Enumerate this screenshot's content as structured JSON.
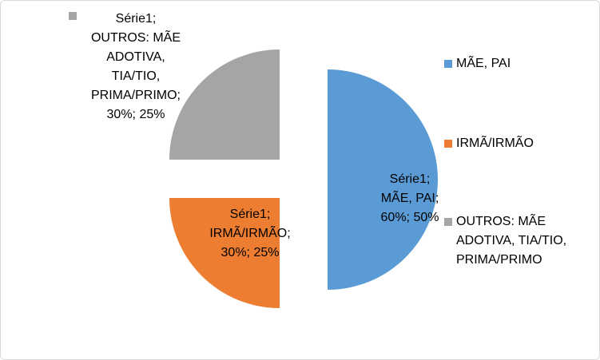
{
  "chart_data": {
    "type": "pie",
    "series_name": "Série1",
    "categories": [
      "MÃE, PAI",
      "IRMÃ/IRMÃO",
      "OUTROS: MÃE ADOTIVA, TIA/TIO, PRIMA/PRIMO"
    ],
    "values": [
      60,
      30,
      30
    ],
    "percentages": [
      50,
      25,
      25
    ],
    "colors": [
      "#5b9bd5",
      "#ed7d31",
      "#a5a5a5"
    ],
    "data_labels": [
      [
        "Série1;",
        "MÃE, PAI;",
        "60%; 50%"
      ],
      [
        "Série1;",
        "IRMÃ/IRMÃO;",
        "30%; 25%"
      ],
      [
        "Série1;",
        "OUTROS: MÃE",
        "ADOTIVA,",
        "TIA/TIO,",
        "PRIMA/PRIMO;",
        "30%; 25%"
      ]
    ],
    "legend": {
      "position": "right",
      "entries": [
        [
          "MÃE, PAI"
        ],
        [
          "IRMÃ/IRMÃO"
        ],
        [
          "OUTROS: MÃE",
          "ADOTIVA, TIA/TIO,",
          "PRIMA/PRIMO"
        ]
      ]
    }
  }
}
